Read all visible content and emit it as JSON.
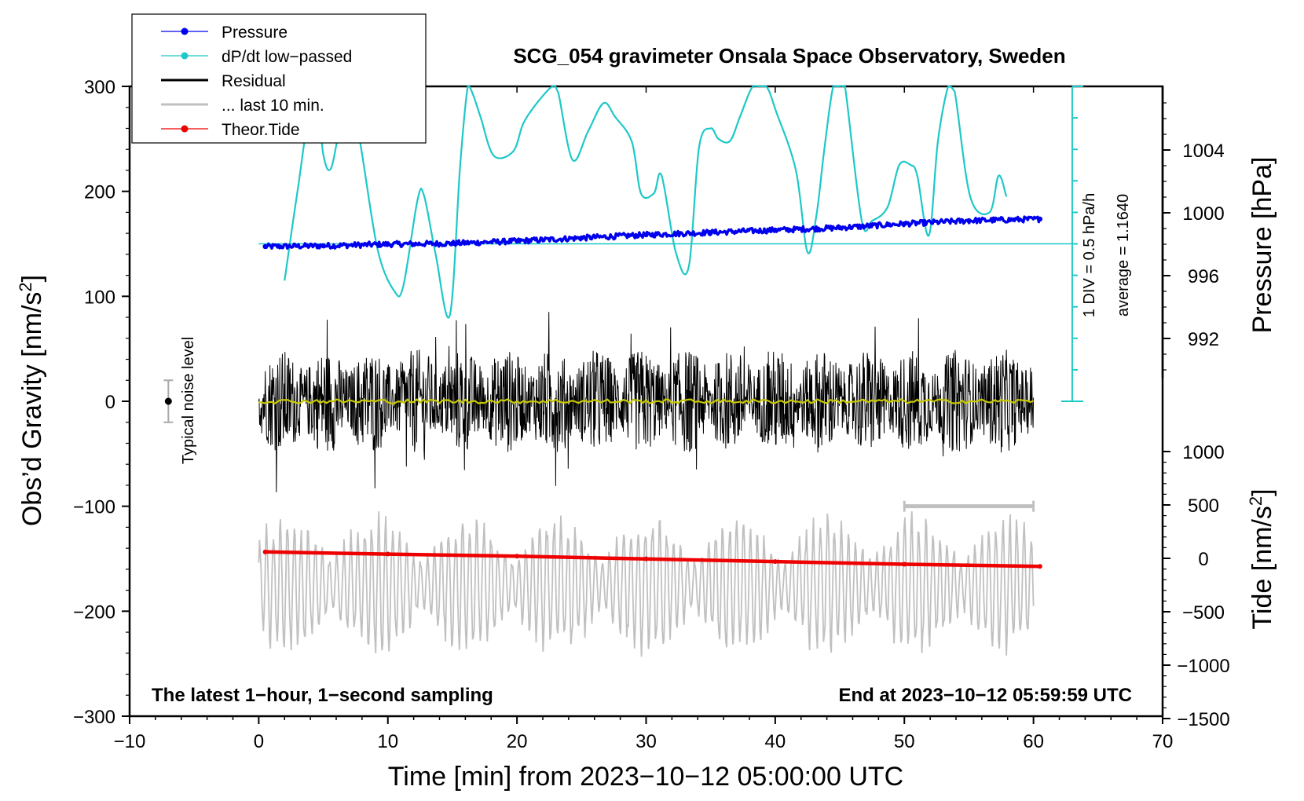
{
  "chart_data": {
    "type": "line",
    "title": "SCG_054 gravimeter Onsala Space Observatory, Sweden",
    "xlabel": "Time [min] from 2023−10−12 05:00:00 UTC",
    "ylabel_left": "Obs’d Gravity [nm/s",
    "ylabel_left_sup": "2",
    "ylabel_left_close": "]",
    "ylabel_pressure": "Pressure [hPa]",
    "ylabel_tide": "Tide [nm/s",
    "ylabel_tide_sup": "2",
    "ylabel_tide_close": "]",
    "xlim": [
      -10,
      70
    ],
    "ylim_left": [
      -300,
      300
    ],
    "xticks": [
      -10,
      0,
      10,
      20,
      30,
      40,
      50,
      60,
      70
    ],
    "xtick_labels": [
      "−10",
      "0",
      "10",
      "20",
      "30",
      "40",
      "50",
      "60",
      "70"
    ],
    "yticks_left": [
      300,
      200,
      100,
      0,
      -100,
      -200,
      -300
    ],
    "ytick_left_labels": [
      "300",
      "200",
      "100",
      "0",
      "−100",
      "−200",
      "−300"
    ],
    "pressure_ticks": [
      1004,
      1000,
      996,
      992
    ],
    "pressure_tick_labels": [
      "1004",
      "1000",
      "996",
      "992"
    ],
    "pressure_range_hpa": [
      989.5,
      1008.0
    ],
    "tide_ticks": [
      1000,
      500,
      0,
      -500,
      -1000,
      -1500
    ],
    "tide_tick_labels": [
      "1000",
      "500",
      "0",
      "−500",
      "−1000",
      "−1500"
    ],
    "tide_range": [
      -1500,
      1000
    ],
    "legend": [
      {
        "label": "Pressure",
        "color": "#0000ee",
        "marker": "dot"
      },
      {
        "label": "dP/dt low−passed",
        "color": "#1ec8c8",
        "marker": "dot"
      },
      {
        "label": "Residual",
        "color": "#000000",
        "marker": "line"
      },
      {
        "label": "... last 10 min.",
        "color": "#c0c0c0",
        "marker": "line"
      },
      {
        "label": "Theor.Tide",
        "color": "#ee0000",
        "marker": "dot"
      }
    ],
    "legend_position": "top-left",
    "annotations": {
      "bottom_left": "The latest 1−hour, 1−second sampling",
      "bottom_right": "End at 2023−10−12 05:59:59 UTC",
      "noise": "Typical noise level",
      "div_scale": "1 DIV = 0.5 hPa/h",
      "average": "average = 1.1640"
    },
    "noise_level": {
      "x": -7,
      "center": 0,
      "half_range": 20
    },
    "ten_min_bar": {
      "x_start": 50,
      "x_end": 60,
      "y": -100
    },
    "series": {
      "pressure_hpa": {
        "x": [
          0.5,
          5,
          10,
          15,
          20,
          25,
          30,
          35,
          40,
          45,
          50,
          55,
          60.5
        ],
        "values": [
          997.85,
          997.9,
          998.0,
          998.05,
          998.2,
          998.4,
          998.6,
          998.75,
          998.9,
          999.05,
          999.3,
          999.5,
          999.6
        ]
      },
      "dpdt_lowpassed": {
        "baseline_y": 150,
        "x": [
          2.0,
          3.0,
          4.3,
          5.0,
          5.6,
          6.3,
          6.8,
          7.8,
          9.2,
          10.5,
          11.2,
          12.3,
          12.8,
          13.7,
          14.8,
          15.6,
          16.2,
          16.6,
          17.2,
          18.2,
          19.7,
          20.5,
          21.6,
          22.8,
          23.2,
          24.3,
          25.5,
          26.7,
          27.6,
          28.9,
          29.6,
          30.6,
          31.2,
          32.3,
          33.3,
          34.1,
          35.0,
          35.6,
          36.5,
          37.3,
          38.3,
          39.3,
          40.1,
          41.6,
          42.5,
          43.2,
          43.8,
          44.5,
          45.1,
          45.4,
          46.7,
          47.5,
          48.7,
          49.6,
          50.5,
          51.0,
          51.9,
          52.6,
          53.4,
          53.9,
          55.1,
          56.6,
          57.3,
          57.9
        ],
        "values": [
          115,
          200,
          310,
          235,
          222,
          265,
          305,
          250,
          145,
          105,
          110,
          192,
          196,
          140,
          82,
          225,
          305,
          292,
          270,
          234,
          238,
          265,
          285,
          306,
          294,
          230,
          257,
          284,
          271,
          247,
          198,
          198,
          215,
          142,
          128,
          242,
          260,
          250,
          248,
          272,
          303,
          300,
          275,
          220,
          142,
          178,
          240,
          305,
          305,
          305,
          172,
          172,
          185,
          225,
          225,
          215,
          158,
          248,
          300,
          295,
          195,
          180,
          215,
          195
        ]
      },
      "residual": {
        "description": "1-second residual, roughly ±50 nm/s² with peaks to ±100",
        "x_range": [
          0,
          60
        ],
        "typical_amplitude": 50
      },
      "residual_smoothed": {
        "x_range": [
          0,
          60
        ],
        "value": 0,
        "color": "#c8c800"
      },
      "tide_nm_s2": {
        "x": [
          0.5,
          10,
          20,
          30,
          40,
          50,
          60.5
        ],
        "values": [
          60,
          40,
          20,
          -5,
          -30,
          -55,
          -75
        ]
      },
      "last_10_min": {
        "description": "last 10 min residual overlay, offset to ~−175",
        "center": -175,
        "amplitude": 55
      }
    }
  }
}
